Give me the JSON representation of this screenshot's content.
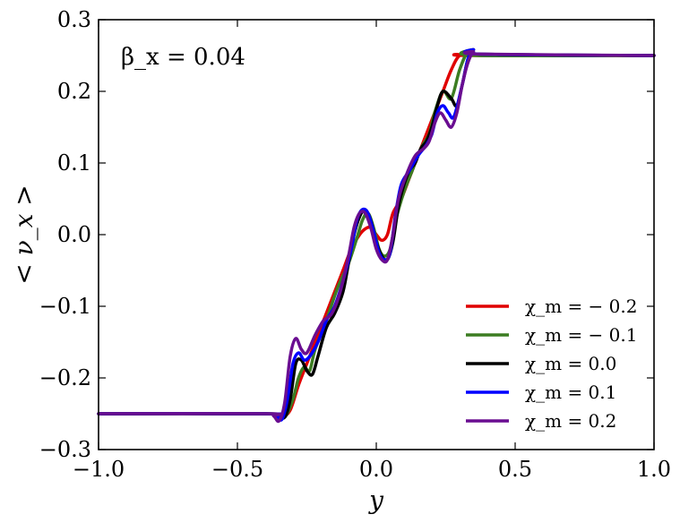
{
  "chart_data": {
    "type": "line",
    "xlabel": "y",
    "ylabel": "< ν_x >",
    "annotation": "β_x = 0.04",
    "xlim": [
      -1.0,
      1.0
    ],
    "ylim": [
      -0.3,
      0.3
    ],
    "xticks": [
      "−1.0",
      "−0.5",
      "0.0",
      "0.5",
      "1.0"
    ],
    "yticks": [
      "−0.3",
      "−0.2",
      "−0.1",
      "0.0",
      "0.1",
      "0.2",
      "0.3"
    ],
    "legend_position": "lower-right",
    "series": [
      {
        "name": "χ_m = − 0.2",
        "color": "#e00000",
        "points": [
          [
            -1.0,
            -0.25
          ],
          [
            -0.4,
            -0.25
          ],
          [
            -0.36,
            -0.252
          ],
          [
            -0.34,
            -0.255
          ],
          [
            -0.31,
            -0.245
          ],
          [
            -0.28,
            -0.21
          ],
          [
            -0.25,
            -0.18
          ],
          [
            -0.22,
            -0.15
          ],
          [
            -0.19,
            -0.12
          ],
          [
            -0.15,
            -0.08
          ],
          [
            -0.12,
            -0.05
          ],
          [
            -0.09,
            -0.02
          ],
          [
            -0.06,
            0.0
          ],
          [
            -0.04,
            0.008
          ],
          [
            -0.02,
            0.01
          ],
          [
            0.0,
            0.0
          ],
          [
            0.02,
            -0.008
          ],
          [
            0.04,
            0.0
          ],
          [
            0.06,
            0.03
          ],
          [
            0.09,
            0.05
          ],
          [
            0.12,
            0.08
          ],
          [
            0.15,
            0.11
          ],
          [
            0.18,
            0.14
          ],
          [
            0.21,
            0.17
          ],
          [
            0.24,
            0.2
          ],
          [
            0.27,
            0.23
          ],
          [
            0.3,
            0.25
          ],
          [
            0.34,
            0.25
          ],
          [
            1.0,
            0.25
          ]
        ]
      },
      {
        "name": "χ_m = − 0.1",
        "color": "#3c7d22",
        "points": [
          [
            -1.0,
            -0.25
          ],
          [
            -0.4,
            -0.25
          ],
          [
            -0.36,
            -0.252
          ],
          [
            -0.33,
            -0.255
          ],
          [
            -0.3,
            -0.23
          ],
          [
            -0.28,
            -0.2
          ],
          [
            -0.26,
            -0.185
          ],
          [
            -0.24,
            -0.19
          ],
          [
            -0.22,
            -0.16
          ],
          [
            -0.18,
            -0.12
          ],
          [
            -0.14,
            -0.075
          ],
          [
            -0.1,
            -0.04
          ],
          [
            -0.07,
            -0.005
          ],
          [
            -0.05,
            0.02
          ],
          [
            -0.03,
            0.03
          ],
          [
            -0.01,
            0.01
          ],
          [
            0.01,
            -0.02
          ],
          [
            0.03,
            -0.03
          ],
          [
            0.05,
            -0.02
          ],
          [
            0.07,
            0.02
          ],
          [
            0.1,
            0.06
          ],
          [
            0.13,
            0.09
          ],
          [
            0.16,
            0.12
          ],
          [
            0.19,
            0.14
          ],
          [
            0.21,
            0.17
          ],
          [
            0.24,
            0.2
          ],
          [
            0.27,
            0.19
          ],
          [
            0.3,
            0.23
          ],
          [
            0.33,
            0.255
          ],
          [
            0.36,
            0.25
          ],
          [
            1.0,
            0.25
          ]
        ]
      },
      {
        "name": "χ_m = 0.0",
        "color": "#000000",
        "points": [
          [
            -1.0,
            -0.25
          ],
          [
            -0.4,
            -0.25
          ],
          [
            -0.36,
            -0.252
          ],
          [
            -0.33,
            -0.255
          ],
          [
            -0.31,
            -0.23
          ],
          [
            -0.29,
            -0.18
          ],
          [
            -0.27,
            -0.175
          ],
          [
            -0.25,
            -0.19
          ],
          [
            -0.23,
            -0.195
          ],
          [
            -0.21,
            -0.17
          ],
          [
            -0.18,
            -0.13
          ],
          [
            -0.15,
            -0.11
          ],
          [
            -0.12,
            -0.08
          ],
          [
            -0.1,
            -0.04
          ],
          [
            -0.08,
            0.0
          ],
          [
            -0.06,
            0.025
          ],
          [
            -0.04,
            0.035
          ],
          [
            -0.02,
            0.02
          ],
          [
            0.0,
            -0.01
          ],
          [
            0.02,
            -0.03
          ],
          [
            0.04,
            -0.035
          ],
          [
            0.06,
            -0.01
          ],
          [
            0.08,
            0.04
          ],
          [
            0.1,
            0.07
          ],
          [
            0.12,
            0.09
          ],
          [
            0.14,
            0.1
          ],
          [
            0.16,
            0.12
          ],
          [
            0.18,
            0.13
          ],
          [
            0.2,
            0.15
          ],
          [
            0.22,
            0.18
          ],
          [
            0.24,
            0.2
          ],
          [
            0.27,
            0.19
          ],
          [
            0.29,
            0.18
          ],
          [
            0.31,
            0.21
          ],
          [
            0.33,
            0.245
          ],
          [
            0.35,
            0.258
          ],
          [
            0.37,
            0.252
          ],
          [
            1.0,
            0.25
          ]
        ]
      },
      {
        "name": "χ_m = 0.1",
        "color": "#0000ff",
        "points": [
          [
            -1.0,
            -0.25
          ],
          [
            -0.4,
            -0.25
          ],
          [
            -0.36,
            -0.252
          ],
          [
            -0.34,
            -0.258
          ],
          [
            -0.32,
            -0.23
          ],
          [
            -0.3,
            -0.18
          ],
          [
            -0.28,
            -0.165
          ],
          [
            -0.26,
            -0.175
          ],
          [
            -0.24,
            -0.17
          ],
          [
            -0.21,
            -0.15
          ],
          [
            -0.18,
            -0.12
          ],
          [
            -0.15,
            -0.1
          ],
          [
            -0.12,
            -0.065
          ],
          [
            -0.09,
            -0.02
          ],
          [
            -0.07,
            0.02
          ],
          [
            -0.05,
            0.035
          ],
          [
            -0.03,
            0.03
          ],
          [
            -0.01,
            0.005
          ],
          [
            0.01,
            -0.025
          ],
          [
            0.03,
            -0.035
          ],
          [
            0.05,
            -0.025
          ],
          [
            0.07,
            0.03
          ],
          [
            0.09,
            0.07
          ],
          [
            0.12,
            0.09
          ],
          [
            0.15,
            0.11
          ],
          [
            0.18,
            0.125
          ],
          [
            0.2,
            0.14
          ],
          [
            0.22,
            0.17
          ],
          [
            0.24,
            0.18
          ],
          [
            0.26,
            0.17
          ],
          [
            0.28,
            0.165
          ],
          [
            0.31,
            0.21
          ],
          [
            0.33,
            0.245
          ],
          [
            0.35,
            0.258
          ],
          [
            0.37,
            0.252
          ],
          [
            1.0,
            0.25
          ]
        ]
      },
      {
        "name": "χ_m = 0.2",
        "color": "#6a0d91",
        "points": [
          [
            -1.0,
            -0.25
          ],
          [
            -0.4,
            -0.25
          ],
          [
            -0.37,
            -0.253
          ],
          [
            -0.35,
            -0.26
          ],
          [
            -0.33,
            -0.235
          ],
          [
            -0.31,
            -0.17
          ],
          [
            -0.29,
            -0.145
          ],
          [
            -0.27,
            -0.16
          ],
          [
            -0.25,
            -0.165
          ],
          [
            -0.22,
            -0.14
          ],
          [
            -0.19,
            -0.12
          ],
          [
            -0.16,
            -0.11
          ],
          [
            -0.13,
            -0.08
          ],
          [
            -0.1,
            -0.03
          ],
          [
            -0.08,
            0.01
          ],
          [
            -0.06,
            0.03
          ],
          [
            -0.04,
            0.03
          ],
          [
            -0.02,
            0.01
          ],
          [
            0.0,
            -0.02
          ],
          [
            0.02,
            -0.035
          ],
          [
            0.04,
            -0.035
          ],
          [
            0.06,
            0.0
          ],
          [
            0.08,
            0.05
          ],
          [
            0.11,
            0.085
          ],
          [
            0.14,
            0.11
          ],
          [
            0.17,
            0.12
          ],
          [
            0.19,
            0.13
          ],
          [
            0.21,
            0.155
          ],
          [
            0.23,
            0.17
          ],
          [
            0.25,
            0.16
          ],
          [
            0.27,
            0.15
          ],
          [
            0.29,
            0.17
          ],
          [
            0.31,
            0.21
          ],
          [
            0.33,
            0.24
          ],
          [
            0.35,
            0.255
          ],
          [
            0.37,
            0.252
          ],
          [
            1.0,
            0.25
          ]
        ]
      }
    ]
  }
}
